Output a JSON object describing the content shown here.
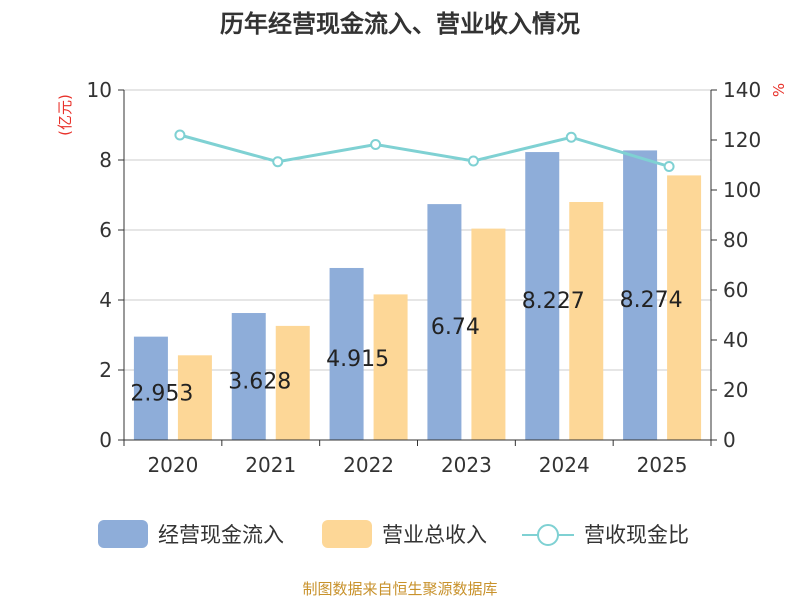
{
  "title": "历年经营现金流入、营业收入情况",
  "footer": "制图数据来自恒生聚源数据库",
  "chart_data": {
    "type": "bar",
    "title": "历年经营现金流入、营业收入情况",
    "categories": [
      "2020",
      "2021",
      "2022",
      "2023",
      "2024",
      "2025"
    ],
    "y_left": {
      "label": "(亿元)",
      "ylim": [
        0,
        10
      ],
      "ticks": [
        "0",
        "2",
        "4",
        "6",
        "8",
        "10"
      ]
    },
    "y_right": {
      "label": "%",
      "ylim": [
        0,
        140
      ],
      "ticks": [
        "0",
        "20",
        "40",
        "60",
        "80",
        "100",
        "120",
        "140"
      ]
    },
    "series": [
      {
        "name": "经营现金流入",
        "kind": "bar",
        "axis": "left",
        "color": "#8eadd9",
        "values": [
          2.953,
          3.628,
          4.915,
          6.74,
          8.227,
          8.274
        ],
        "labels": [
          "2.953",
          "3.628",
          "4.915",
          "6.74",
          "8.227",
          "8.274"
        ]
      },
      {
        "name": "营业总收入",
        "kind": "bar",
        "axis": "left",
        "color": "#fdd797",
        "values": [
          2.42,
          3.26,
          4.16,
          6.04,
          6.8,
          7.56
        ]
      },
      {
        "name": "营收现金比",
        "kind": "line",
        "axis": "right",
        "color": "#7fd1d3",
        "values": [
          122,
          111.3,
          118.2,
          111.6,
          121.1,
          109.4
        ]
      }
    ],
    "grid": true,
    "legend": "bottom"
  }
}
